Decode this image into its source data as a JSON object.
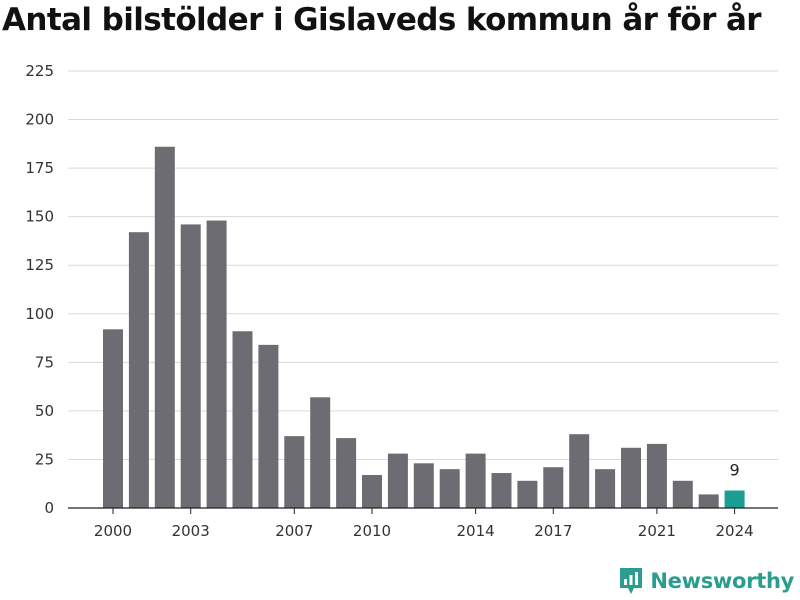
{
  "chart_data": {
    "type": "bar",
    "title": "Antal bilstölder i Gislaveds kommun år för år",
    "xlabel": "",
    "ylabel": "",
    "categories": [
      "2000",
      "2001",
      "2002",
      "2003",
      "2004",
      "2005",
      "2006",
      "2007",
      "2008",
      "2009",
      "2010",
      "2011",
      "2012",
      "2013",
      "2014",
      "2015",
      "2016",
      "2017",
      "2018",
      "2019",
      "2020",
      "2021",
      "2022",
      "2023",
      "2024"
    ],
    "values": [
      92,
      142,
      186,
      146,
      148,
      91,
      84,
      37,
      57,
      36,
      17,
      28,
      23,
      20,
      28,
      18,
      14,
      21,
      38,
      20,
      31,
      33,
      14,
      7,
      9
    ],
    "x_tick_labels": [
      "2000",
      "2003",
      "2007",
      "2010",
      "2014",
      "2017",
      "2021",
      "2024"
    ],
    "ylim": [
      0,
      225
    ],
    "y_ticks": [
      0,
      25,
      50,
      75,
      100,
      125,
      150,
      175,
      200,
      225
    ],
    "grid": true,
    "bar_color": "#6d6c72",
    "highlight_color": "#1a9e93",
    "highlight_index": 24,
    "annotations": [
      {
        "category": "2024",
        "text": "9"
      }
    ]
  },
  "brand": {
    "name": "Newsworthy",
    "icon": "newsworthy-logo-icon",
    "color": "#2a9d8f"
  }
}
